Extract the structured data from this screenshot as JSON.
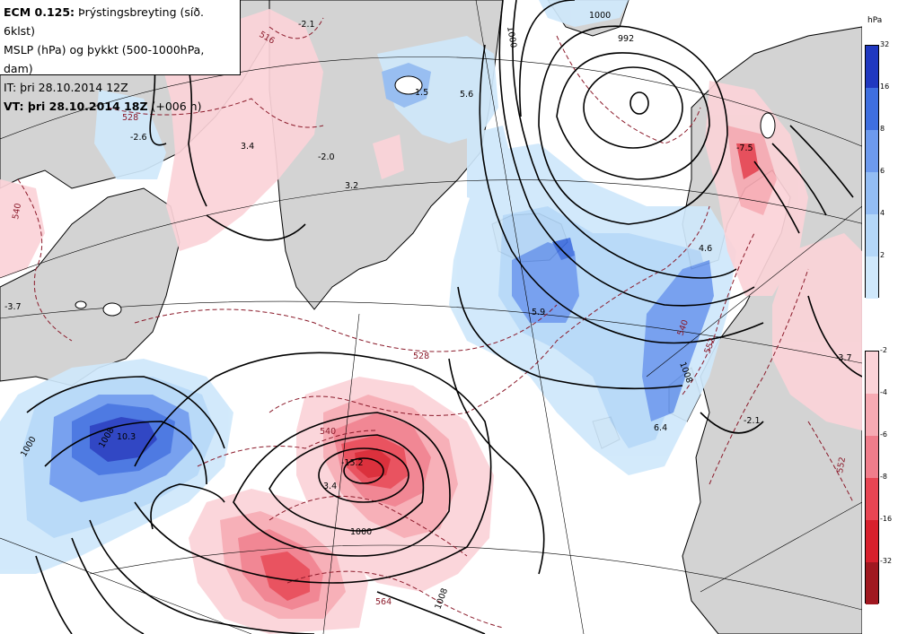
{
  "header": {
    "model": "ECM 0.125:",
    "product": "Þrýstingsbreyting (síð. 6klst)",
    "line2": "MSLP (hPa) og þykkt (500-1000hPa, dam)",
    "line3": "IT: þri 28.10.2014 12Z",
    "vt_label": "VT: þri 28.10.2014 18Z",
    "vt_suffix": "(+006 h)"
  },
  "legend": {
    "unit": "hPa",
    "rise_ticks": [
      "32",
      "16",
      "8",
      "6",
      "4",
      "2"
    ],
    "fall_ticks": [
      "-2",
      "-4",
      "-6",
      "-8",
      "-16",
      "-32"
    ],
    "rise_colors": [
      "#2038c0",
      "#3f6fe0",
      "#6d9aee",
      "#93bdf4",
      "#b4d7f8",
      "#cfe8fb"
    ],
    "fall_colors": [
      "#fbd3d8",
      "#f7aab3",
      "#f07d8b",
      "#e84553",
      "#d8202d",
      "#a01820"
    ]
  },
  "colors": {
    "land": "#d3d3d3",
    "isobar": "#000000",
    "thickness": "#8b1a2a"
  },
  "isobar_labels": [
    "1000",
    "992",
    "1000",
    "1000",
    "1000",
    "1008",
    "1008",
    "1008"
  ],
  "thickness_labels": [
    "516",
    "528",
    "540",
    "540",
    "528",
    "552",
    "564",
    "540",
    "552"
  ],
  "value_labels": [
    "-2.1",
    "-2.6",
    "3.4",
    "-2.0",
    "3.2",
    "-3.7",
    "1.5",
    "5.6",
    "5.9",
    "-7.5",
    "4.6",
    "6.4",
    "-2.1",
    "-3.7",
    "10.3",
    "-15.2",
    "3.4"
  ]
}
